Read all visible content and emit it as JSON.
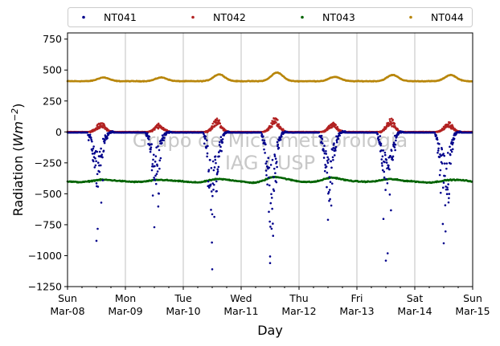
{
  "chart_data": {
    "type": "scatter",
    "xlabel": "Day",
    "ylabel_main": "Radiation (",
    "ylabel_unit": "Wm",
    "ylabel_exp": "−2",
    "ylabel_close": ")",
    "ylim": [
      -1250,
      800
    ],
    "yticks": [
      -1250,
      -1000,
      -750,
      -500,
      -250,
      0,
      250,
      500,
      750
    ],
    "ytick_labels": [
      "−1250",
      "−1000",
      "−750",
      "−500",
      "−250",
      "0",
      "250",
      "500",
      "750"
    ],
    "xlim_days": [
      0,
      7
    ],
    "xticks": [
      {
        "day": 0,
        "line1": "Sun",
        "line2": "Mar-08"
      },
      {
        "day": 1,
        "line1": "Mon",
        "line2": "Mar-09"
      },
      {
        "day": 2,
        "line1": "Tue",
        "line2": "Mar-10"
      },
      {
        "day": 3,
        "line1": "Wed",
        "line2": "Mar-11"
      },
      {
        "day": 4,
        "line1": "Thu",
        "line2": "Mar-12"
      },
      {
        "day": 5,
        "line1": "Fri",
        "line2": "Mar-13"
      },
      {
        "day": 6,
        "line1": "Sat",
        "line2": "Mar-14"
      },
      {
        "day": 7,
        "line1": "Sun",
        "line2": "Mar-15"
      }
    ],
    "grid": "x-major",
    "legend_position": "top",
    "watermark_line1": "Grupo de Micrometeorologia",
    "watermark_line2": "IAG / USP",
    "series": [
      {
        "name": "NT041",
        "color": "#00008b",
        "night_level": -5,
        "daily_min": [
          -880,
          -770,
          -1110,
          -1060,
          -710,
          -1040,
          -900
        ],
        "daily_typical": [
          -330,
          -300,
          -500,
          -560,
          -400,
          -420,
          -420
        ]
      },
      {
        "name": "NT042",
        "color": "#b22222",
        "night_level": 0,
        "daily_peak": [
          75,
          60,
          100,
          105,
          70,
          100,
          75
        ]
      },
      {
        "name": "NT043",
        "color": "#006400",
        "night_level": -400,
        "daily_min": [
          -420,
          -415,
          -430,
          -440,
          -420,
          -410,
          -430
        ],
        "daily_max": [
          -385,
          -385,
          -380,
          -355,
          -360,
          -375,
          -390
        ]
      },
      {
        "name": "NT044",
        "color": "#b8860b",
        "night_level": 410,
        "daily_peak": [
          440,
          440,
          465,
          480,
          445,
          460,
          460
        ]
      }
    ]
  }
}
